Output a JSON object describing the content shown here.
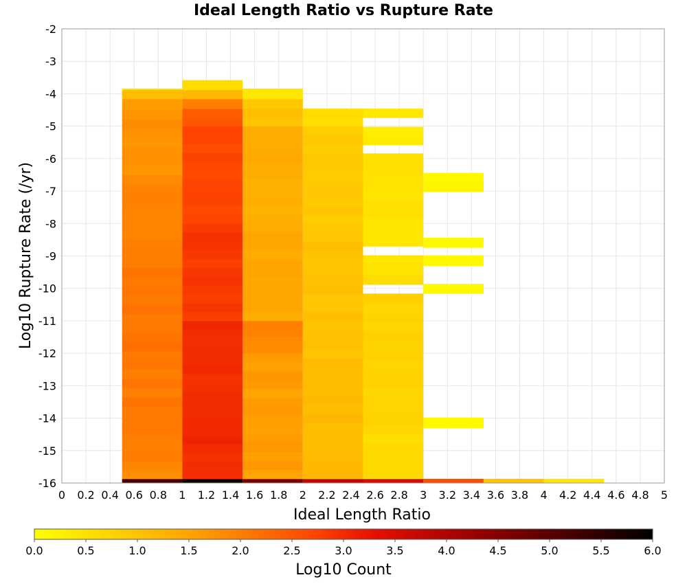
{
  "chart_data": {
    "type": "heatmap",
    "title": "Ideal Length Ratio vs Rupture Rate",
    "xlabel": "Ideal Length Ratio",
    "ylabel": "Log10 Rupture Rate (/yr)",
    "colorbar_label": "Log10 Count",
    "xlim": [
      0,
      5
    ],
    "ylim": [
      -16,
      -2
    ],
    "x_ticks": [
      "0",
      "0.2",
      "0.4",
      "0.6",
      "0.8",
      "1",
      "1.2",
      "1.4",
      "1.6",
      "1.8",
      "2",
      "2.2",
      "2.4",
      "2.6",
      "2.8",
      "3",
      "3.2",
      "3.4",
      "3.6",
      "3.8",
      "4",
      "4.2",
      "4.4",
      "4.6",
      "4.8",
      "5"
    ],
    "y_ticks": [
      "-2",
      "-3",
      "-4",
      "-5",
      "-6",
      "-7",
      "-8",
      "-9",
      "-10",
      "-11",
      "-12",
      "-13",
      "-14",
      "-15",
      "-16"
    ],
    "colorbar_range": [
      0,
      6
    ],
    "colorbar_ticks": [
      "0.0",
      "0.5",
      "1.0",
      "1.5",
      "2.0",
      "2.5",
      "3.0",
      "3.5",
      "4.0",
      "4.5",
      "5.0",
      "5.5",
      "6.0"
    ],
    "grid": true,
    "bin_width_x": 0.5,
    "bin_height_y": 0.28,
    "columns": [
      {
        "x_start": 0.5,
        "cells": [
          {
            "y_bottom": -16.0,
            "y_top": -15.87,
            "value": 5.2
          },
          {
            "y_bottom": -15.87,
            "y_top": -15.59,
            "value": 1.8
          },
          {
            "y_bottom": -15.59,
            "y_top": -14.5,
            "value": 2.0
          },
          {
            "y_bottom": -14.5,
            "y_top": -12.5,
            "value": 2.05
          },
          {
            "y_bottom": -12.5,
            "y_top": -10.5,
            "value": 2.1
          },
          {
            "y_bottom": -10.5,
            "y_top": -8.5,
            "value": 2.05
          },
          {
            "y_bottom": -8.5,
            "y_top": -6.5,
            "value": 1.9
          },
          {
            "y_bottom": -6.5,
            "y_top": -4.5,
            "value": 1.75
          },
          {
            "y_bottom": -4.5,
            "y_top": -4.16,
            "value": 1.6
          },
          {
            "y_bottom": -4.16,
            "y_top": -3.88,
            "value": 1.1
          },
          {
            "y_bottom": -3.88,
            "y_top": -3.84,
            "value": 0.5
          }
        ]
      },
      {
        "x_start": 1.0,
        "cells": [
          {
            "y_bottom": -16.0,
            "y_top": -15.87,
            "value": 5.9
          },
          {
            "y_bottom": -15.87,
            "y_top": -14.0,
            "value": 3.0
          },
          {
            "y_bottom": -14.0,
            "y_top": -11.0,
            "value": 3.0
          },
          {
            "y_bottom": -11.0,
            "y_top": -8.0,
            "value": 2.85
          },
          {
            "y_bottom": -8.0,
            "y_top": -5.0,
            "value": 2.7
          },
          {
            "y_bottom": -5.0,
            "y_top": -4.46,
            "value": 2.4
          },
          {
            "y_bottom": -4.46,
            "y_top": -4.16,
            "value": 2.0
          },
          {
            "y_bottom": -4.16,
            "y_top": -3.88,
            "value": 1.2
          },
          {
            "y_bottom": -3.88,
            "y_top": -3.58,
            "value": 0.6
          }
        ]
      },
      {
        "x_start": 1.5,
        "cells": [
          {
            "y_bottom": -16.0,
            "y_top": -15.87,
            "value": 4.6
          },
          {
            "y_bottom": -15.87,
            "y_top": -12.0,
            "value": 1.6
          },
          {
            "y_bottom": -12.0,
            "y_top": -11.0,
            "value": 1.9
          },
          {
            "y_bottom": -11.0,
            "y_top": -8.0,
            "value": 1.45
          },
          {
            "y_bottom": -8.0,
            "y_top": -5.0,
            "value": 1.35
          },
          {
            "y_bottom": -5.0,
            "y_top": -4.46,
            "value": 1.0
          },
          {
            "y_bottom": -4.46,
            "y_top": -4.16,
            "value": 0.9
          },
          {
            "y_bottom": -4.16,
            "y_top": -3.84,
            "value": 0.4
          }
        ]
      },
      {
        "x_start": 2.0,
        "cells": [
          {
            "y_bottom": -16.0,
            "y_top": -15.87,
            "value": 3.8
          },
          {
            "y_bottom": -15.87,
            "y_top": -13.3,
            "value": 1.15
          },
          {
            "y_bottom": -13.3,
            "y_top": -11.0,
            "value": 1.05
          },
          {
            "y_bottom": -11.0,
            "y_top": -8.0,
            "value": 1.0
          },
          {
            "y_bottom": -8.0,
            "y_top": -5.0,
            "value": 0.9
          },
          {
            "y_bottom": -5.0,
            "y_top": -4.46,
            "value": 0.6
          }
        ]
      },
      {
        "x_start": 2.5,
        "cells": [
          {
            "y_bottom": -16.0,
            "y_top": -15.87,
            "value": 3.5
          },
          {
            "y_bottom": -15.87,
            "y_top": -14.5,
            "value": 0.6
          },
          {
            "y_bottom": -14.5,
            "y_top": -12.5,
            "value": 0.7
          },
          {
            "y_bottom": -12.5,
            "y_top": -10.16,
            "value": 0.75
          },
          {
            "y_bottom": -9.88,
            "y_top": -8.98,
            "value": 0.5
          },
          {
            "y_bottom": -8.7,
            "y_top": -5.84,
            "value": 0.45
          },
          {
            "y_bottom": -5.58,
            "y_top": -5.02,
            "value": 0.35
          },
          {
            "y_bottom": -4.74,
            "y_top": -4.46,
            "value": 0.4
          }
        ]
      },
      {
        "x_start": 3.0,
        "cells": [
          {
            "y_bottom": -16.0,
            "y_top": -15.87,
            "value": 2.6
          },
          {
            "y_bottom": -14.3,
            "y_top": -13.98,
            "value": 0.1
          },
          {
            "y_bottom": -10.16,
            "y_top": -9.86,
            "value": 0.1
          },
          {
            "y_bottom": -9.3,
            "y_top": -8.98,
            "value": 0.1
          },
          {
            "y_bottom": -8.74,
            "y_top": -8.44,
            "value": 0.1
          },
          {
            "y_bottom": -7.02,
            "y_top": -6.44,
            "value": 0.1
          }
        ]
      },
      {
        "x_start": 3.5,
        "cells": [
          {
            "y_bottom": -16.0,
            "y_top": -15.87,
            "value": 1.0
          }
        ]
      },
      {
        "x_start": 4.0,
        "cells": [
          {
            "y_bottom": -16.0,
            "y_top": -15.87,
            "value": 0.4
          }
        ]
      }
    ]
  }
}
